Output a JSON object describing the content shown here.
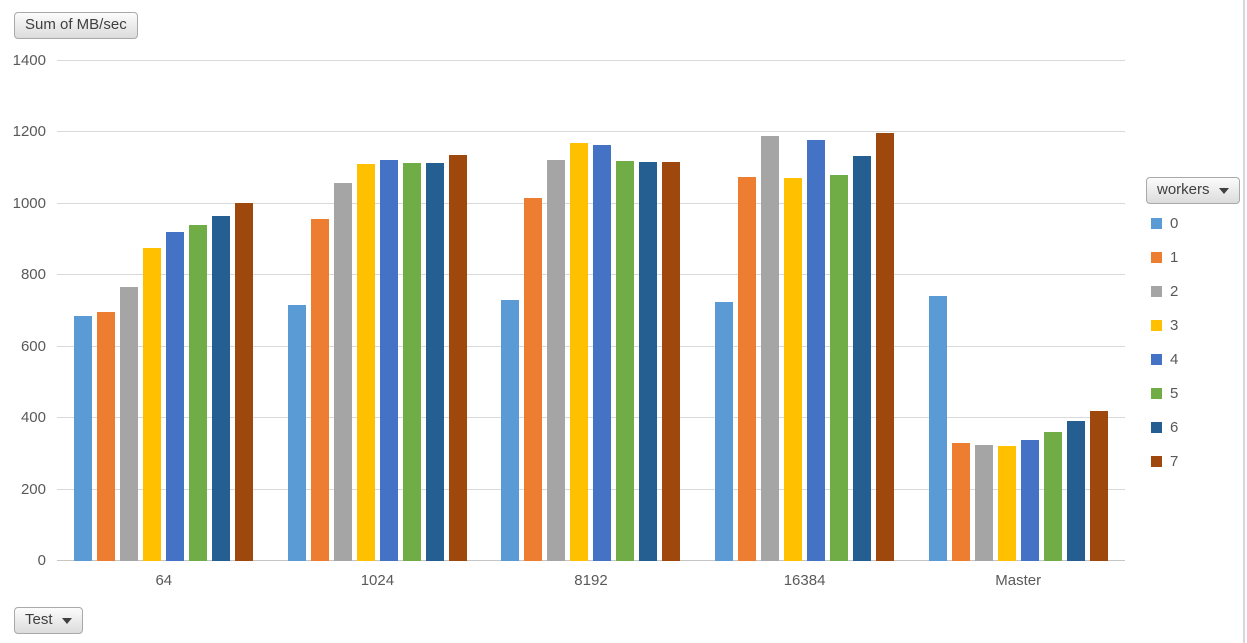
{
  "pivot_buttons": {
    "value_field_label": "Sum of MB/sec",
    "legend_field_label": "workers",
    "axis_field_label": "Test"
  },
  "chart_data": {
    "type": "bar",
    "title": "Sum of MB/sec",
    "xlabel": "Test",
    "ylabel": "Sum of MB/sec",
    "categories": [
      "64",
      "1024",
      "8192",
      "16384",
      "Master"
    ],
    "series": [
      {
        "name": "0",
        "color": "#5B9BD5",
        "values": [
          686,
          718,
          730,
          726,
          742
        ]
      },
      {
        "name": "1",
        "color": "#ED7D31",
        "values": [
          698,
          957,
          1016,
          1075,
          330
        ]
      },
      {
        "name": "2",
        "color": "#A5A5A5",
        "values": [
          768,
          1058,
          1122,
          1190,
          325
        ]
      },
      {
        "name": "3",
        "color": "#FFC000",
        "values": [
          876,
          1111,
          1170,
          1072,
          323
        ]
      },
      {
        "name": "4",
        "color": "#4472C4",
        "values": [
          920,
          1122,
          1164,
          1178,
          338
        ]
      },
      {
        "name": "5",
        "color": "#70AD47",
        "values": [
          941,
          1114,
          1120,
          1080,
          360
        ]
      },
      {
        "name": "6",
        "color": "#255E91",
        "values": [
          966,
          1115,
          1117,
          1133,
          391
        ]
      },
      {
        "name": "7",
        "color": "#9E480E",
        "values": [
          1002,
          1138,
          1117,
          1198,
          420
        ]
      }
    ],
    "ylim": [
      0,
      1400
    ],
    "yticks": [
      0,
      200,
      400,
      600,
      800,
      1000,
      1200,
      1400
    ],
    "grid": true,
    "legend_position": "right",
    "legend_title": "workers"
  },
  "colors": {
    "axis_text": "#595959",
    "gridline": "#D9D9D9",
    "axis_line": "#C6C6C6",
    "window_edge": "#D8D8D8"
  }
}
